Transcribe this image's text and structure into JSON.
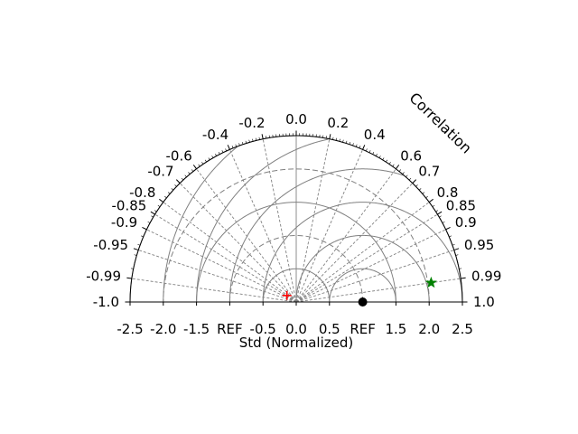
{
  "chart_data": {
    "type": "taylor-diagram",
    "angle_label": "Correlation",
    "xlabel": "Std (Normalized)",
    "xlim": [
      -2.5,
      2.5
    ],
    "x_ticks": [
      {
        "value": -2.5,
        "label": "-2.5"
      },
      {
        "value": -2.0,
        "label": "-2.0"
      },
      {
        "value": -1.5,
        "label": "-1.5"
      },
      {
        "value": -1.0,
        "label": "REF"
      },
      {
        "value": -0.5,
        "label": "-0.5"
      },
      {
        "value": 0.0,
        "label": "0.0"
      },
      {
        "value": 0.5,
        "label": "0.5"
      },
      {
        "value": 1.0,
        "label": "REF"
      },
      {
        "value": 1.5,
        "label": "1.5"
      },
      {
        "value": 2.0,
        "label": "2.0"
      },
      {
        "value": 2.5,
        "label": "2.5"
      }
    ],
    "correlation_ticks": [
      {
        "value": -1.0,
        "label": "-1.0"
      },
      {
        "value": -0.99,
        "label": "-0.99"
      },
      {
        "value": -0.95,
        "label": "-0.95"
      },
      {
        "value": -0.9,
        "label": "-0.9"
      },
      {
        "value": -0.85,
        "label": "-0.85"
      },
      {
        "value": -0.8,
        "label": "-0.8"
      },
      {
        "value": -0.7,
        "label": "-0.7"
      },
      {
        "value": -0.6,
        "label": "-0.6"
      },
      {
        "value": -0.4,
        "label": "-0.4"
      },
      {
        "value": -0.2,
        "label": "-0.2"
      },
      {
        "value": 0.0,
        "label": "0.0"
      },
      {
        "value": 0.2,
        "label": "0.2"
      },
      {
        "value": 0.4,
        "label": "0.4"
      },
      {
        "value": 0.6,
        "label": "0.6"
      },
      {
        "value": 0.7,
        "label": "0.7"
      },
      {
        "value": 0.8,
        "label": "0.8"
      },
      {
        "value": 0.85,
        "label": "0.85"
      },
      {
        "value": 0.9,
        "label": "0.9"
      },
      {
        "value": 0.95,
        "label": "0.95"
      },
      {
        "value": 0.99,
        "label": "0.99"
      },
      {
        "value": 1.0,
        "label": "1.0"
      }
    ],
    "std_contours": [
      0.5,
      1.0,
      1.5,
      2.0,
      2.5
    ],
    "std_dashed_contours": [
      1.0,
      2.0
    ],
    "rms_contours": [
      0.5,
      1.0,
      1.5,
      2.0,
      2.5,
      3.0
    ],
    "reference": {
      "std": 1.0,
      "correlation": 1.0,
      "color": "#000000",
      "marker": "circle"
    },
    "points": [
      {
        "std": 0.17,
        "correlation": -0.82,
        "color": "#ff0000",
        "marker": "plus"
      },
      {
        "std": 2.05,
        "correlation": 0.99,
        "color": "#008000",
        "marker": "star"
      }
    ],
    "grid_color": "#808080"
  }
}
